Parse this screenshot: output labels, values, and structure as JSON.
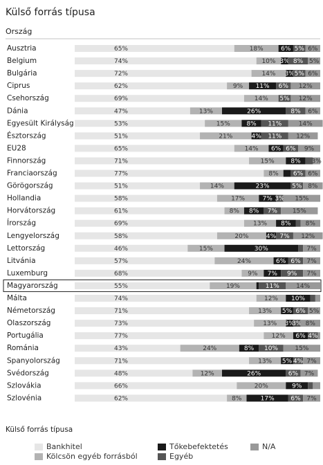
{
  "chart_data": {
    "type": "stacked-bar-horizontal",
    "title": "Külső forrás típusa",
    "axis_title": "Ország",
    "legend_title": "Külső forrás típusa",
    "categories": [
      "Ausztria",
      "Belgium",
      "Bulgária",
      "Ciprus",
      "Csehország",
      "Dánia",
      "Egyesült Királyság",
      "Észtország",
      "EU28",
      "Finnország",
      "Franciaország",
      "Görögország",
      "Hollandia",
      "Horvátország",
      "Írország",
      "Lengyelország",
      "Lettország",
      "Litvánia",
      "Luxemburg",
      "Magyarország",
      "Málta",
      "Németország",
      "Olaszország",
      "Portugália",
      "Románia",
      "Spanyolország",
      "Svédország",
      "Szlovákia",
      "Szlovénia"
    ],
    "highlight_index": 19,
    "xlim": [
      0,
      100
    ],
    "series": [
      {
        "name": "Bankhitel",
        "color": "#e6e6e6",
        "values": [
          65,
          74,
          72,
          62,
          69,
          47,
          53,
          51,
          65,
          71,
          77,
          51,
          58,
          61,
          69,
          58,
          46,
          57,
          68,
          55,
          74,
          71,
          73,
          77,
          43,
          71,
          48,
          66,
          62
        ],
        "value_labels": [
          "65%",
          "74%",
          "72%",
          "62%",
          "69%",
          "47%",
          "53%",
          "51%",
          "65%",
          "71%",
          "77%",
          "51%",
          "58%",
          "61%",
          "69%",
          "58%",
          "46%",
          "57%",
          "68%",
          "55%",
          "74%",
          "71%",
          "73%",
          "77%",
          "43%",
          "71%",
          "48%",
          "66%",
          "62%"
        ]
      },
      {
        "name": "Kölcsön egyéb forrásból",
        "color": "#b3b3b3",
        "values": [
          18,
          10,
          14,
          9,
          14,
          13,
          15,
          21,
          14,
          15,
          8,
          14,
          17,
          8,
          13,
          20,
          15,
          24,
          9,
          19,
          12,
          13,
          13,
          12,
          24,
          13,
          12,
          20,
          8
        ],
        "value_labels": [
          "18%",
          "10%",
          "14%",
          "9%",
          "14%",
          "13%",
          "15%",
          "21%",
          "14%",
          "15%",
          "8%",
          "14%",
          "17%",
          "8%",
          "13%",
          "20%",
          "15%",
          "24%",
          "9%",
          "19%",
          "12%",
          "13%",
          "13%",
          "12%",
          "24%",
          "13%",
          "12%",
          "20%",
          "8%"
        ]
      },
      {
        "name": "Tőkebefektetés",
        "color": "#1a1a1a",
        "values": [
          6,
          3,
          3,
          11,
          0,
          26,
          8,
          4,
          6,
          8,
          3,
          23,
          7,
          8,
          8,
          4,
          30,
          6,
          7,
          1,
          10,
          5,
          3,
          6,
          8,
          5,
          26,
          9,
          17
        ],
        "value_labels": [
          "6%",
          "3%",
          "3%",
          "11%",
          null,
          "26%",
          "8%",
          "4%",
          "6%",
          "8%",
          null,
          "23%",
          "7%",
          "8%",
          "8%",
          "4%",
          "30%",
          "6%",
          "7%",
          null,
          "10%",
          "5%",
          "3%",
          "6%",
          "8%",
          "5%",
          "26%",
          "9%",
          "17%"
        ]
      },
      {
        "name": "Egyéb",
        "color": "#555555",
        "values": [
          5,
          8,
          5,
          6,
          5,
          8,
          11,
          11,
          6,
          3,
          6,
          5,
          3,
          7,
          2,
          7,
          2,
          6,
          9,
          11,
          2,
          6,
          3,
          4,
          10,
          4,
          6,
          2,
          6
        ],
        "value_labels": [
          "5%",
          "8%",
          "5%",
          "6%",
          "5%",
          "8%",
          "11%",
          "11%",
          "6%",
          null,
          "6%",
          "5%",
          "3%",
          "7%",
          null,
          "7%",
          null,
          "6%",
          "9%",
          "11%",
          null,
          "6%",
          "3%",
          "4%",
          "10%",
          "4%",
          "6%",
          null,
          "6%"
        ]
      },
      {
        "name": "N/A",
        "color": "#999999",
        "values": [
          6,
          5,
          6,
          12,
          12,
          6,
          14,
          12,
          9,
          3,
          6,
          8,
          15,
          15,
          8,
          12,
          7,
          7,
          7,
          14,
          2,
          5,
          8,
          1,
          15,
          7,
          7,
          3,
          7
        ],
        "value_labels": [
          "6%",
          "5%",
          "6%",
          "12%",
          "12%",
          "6%",
          "14%",
          "12%",
          "9%",
          "3%",
          "6%",
          "8%",
          "15%",
          "15%",
          "8%",
          "12%",
          "7%",
          "7%",
          "7%",
          "14%",
          null,
          "5%",
          "8%",
          null,
          "15%",
          "7%",
          "7%",
          null,
          "7%"
        ]
      }
    ]
  }
}
